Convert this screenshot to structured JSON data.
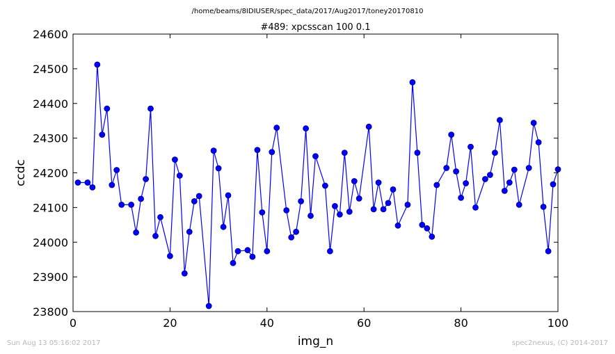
{
  "figure": {
    "path_title": "/home/beams/8IDIUSER/spec_data/2017/Aug2017/toney20170810",
    "footer_left": "Sun Aug 13 05:16:02 2017",
    "footer_right": "spec2nexus, (C) 2014-2017"
  },
  "colors": {
    "series": "#0000ff",
    "marker_fill": "#0000ff",
    "marker_edge": "#000080",
    "axes": "#000000"
  },
  "chart_data": {
    "type": "line",
    "title": "#489: xpcsscan 100 0.1",
    "xlabel": "img_n",
    "ylabel": "ccdc",
    "xlim": [
      0,
      100
    ],
    "ylim": [
      23800,
      24600
    ],
    "xticks": [
      0,
      20,
      40,
      60,
      80,
      100
    ],
    "yticks": [
      23800,
      23900,
      24000,
      24100,
      24200,
      24300,
      24400,
      24500,
      24600
    ],
    "grid": false,
    "markers": "circle",
    "series": [
      {
        "x": [
          1,
          3,
          4,
          5,
          6,
          7,
          8,
          9,
          10,
          12,
          13,
          14,
          15,
          16,
          17,
          18,
          20,
          21,
          22,
          23,
          24,
          25,
          26,
          28,
          29,
          30,
          31,
          32,
          33,
          34,
          36,
          37,
          38,
          39,
          40,
          41,
          42,
          44,
          45,
          46,
          47,
          48,
          49,
          50,
          52,
          53,
          54,
          55,
          56,
          57,
          58,
          59,
          61,
          62,
          63,
          64,
          65,
          66,
          67,
          69,
          70,
          71,
          72,
          73,
          74,
          75,
          77,
          78,
          79,
          80,
          81,
          82,
          83,
          85,
          86,
          87,
          88,
          89,
          90,
          91,
          92,
          94,
          95,
          96,
          97,
          98,
          99,
          100
        ],
        "y": [
          24172,
          24172,
          24158,
          24512,
          24310,
          24385,
          24165,
          24208,
          24108,
          24108,
          24028,
          24125,
          24182,
          24385,
          24018,
          24072,
          23960,
          24238,
          24192,
          23910,
          24030,
          24118,
          24133,
          23816,
          24264,
          24213,
          24044,
          24135,
          23940,
          23974,
          23977,
          23958,
          24266,
          24086,
          23974,
          24260,
          24330,
          24092,
          24014,
          24030,
          24118,
          24328,
          24076,
          24248,
          24163,
          23974,
          24104,
          24080,
          24258,
          24088,
          24176,
          24126,
          24333,
          24095,
          24172,
          24095,
          24113,
          24152,
          24048,
          24108,
          24461,
          24258,
          24050,
          24040,
          24016,
          24165,
          24214,
          24310,
          24204,
          24128,
          24170,
          24275,
          24100,
          24182,
          24194,
          24258,
          24352,
          24148,
          24172,
          24209,
          24108,
          24214,
          24344,
          24288,
          24102,
          23974,
          24167,
          24210
        ]
      }
    ]
  }
}
